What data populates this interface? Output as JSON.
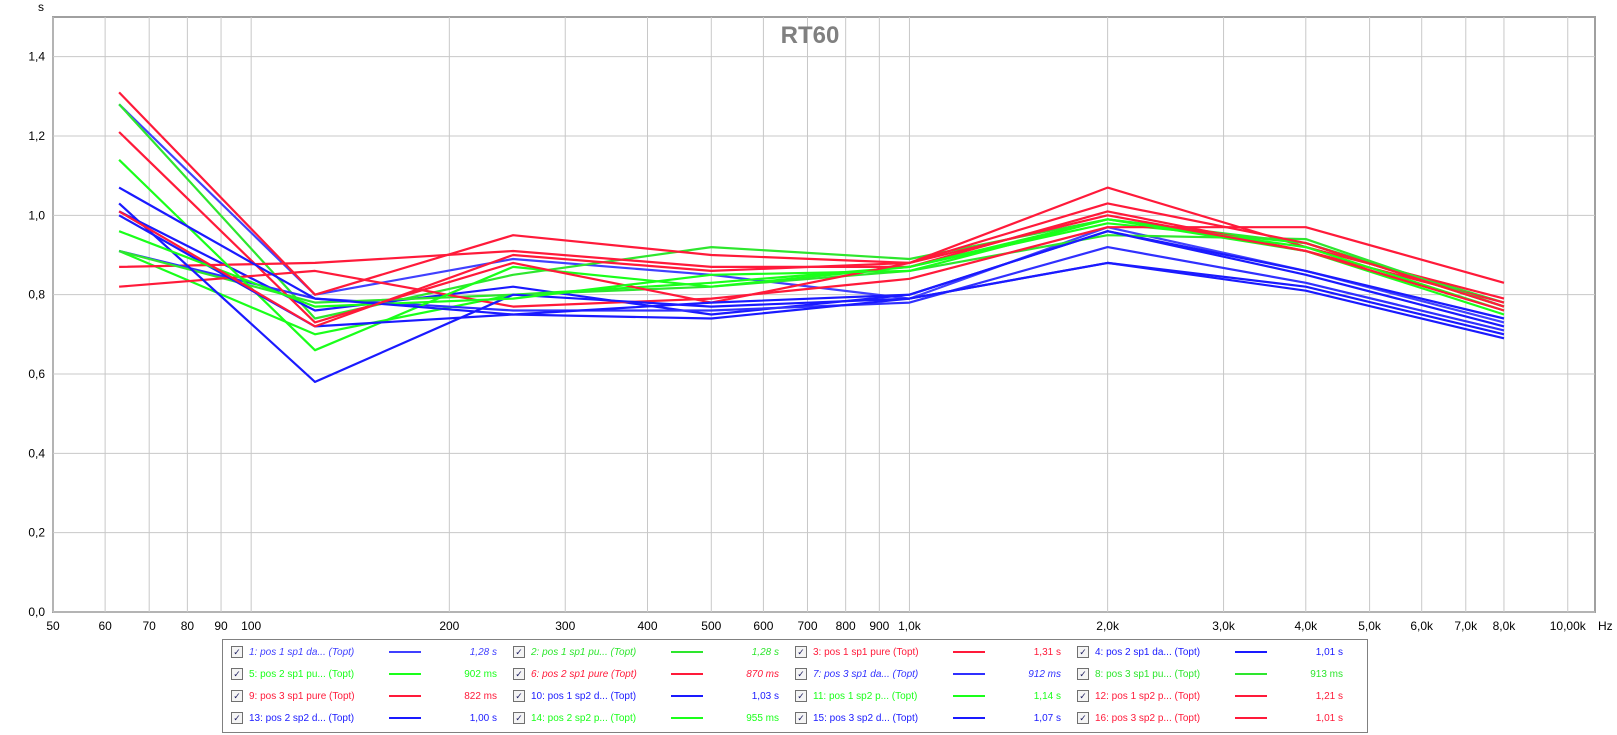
{
  "chart_data": {
    "type": "line",
    "title": "RT60",
    "ylabel": "s",
    "xunit": "Hz",
    "xscale": "log",
    "xlim": [
      50,
      11000
    ],
    "ylim": [
      0,
      1.5
    ],
    "grid": true,
    "x_ticks": [
      {
        "v": 50,
        "label": "50"
      },
      {
        "v": 60,
        "label": "60"
      },
      {
        "v": 70,
        "label": "70"
      },
      {
        "v": 80,
        "label": "80"
      },
      {
        "v": 90,
        "label": "90"
      },
      {
        "v": 100,
        "label": "100"
      },
      {
        "v": 200,
        "label": "200"
      },
      {
        "v": 300,
        "label": "300"
      },
      {
        "v": 400,
        "label": "400"
      },
      {
        "v": 500,
        "label": "500"
      },
      {
        "v": 600,
        "label": "600"
      },
      {
        "v": 700,
        "label": "700"
      },
      {
        "v": 800,
        "label": "800"
      },
      {
        "v": 900,
        "label": "900"
      },
      {
        "v": 1000,
        "label": "1,0k"
      },
      {
        "v": 2000,
        "label": "2,0k"
      },
      {
        "v": 3000,
        "label": "3,0k"
      },
      {
        "v": 4000,
        "label": "4,0k"
      },
      {
        "v": 5000,
        "label": "5,0k"
      },
      {
        "v": 6000,
        "label": "6,0k"
      },
      {
        "v": 7000,
        "label": "7,0k"
      },
      {
        "v": 8000,
        "label": "8,0k"
      },
      {
        "v": 10000,
        "label": "10,00k"
      }
    ],
    "y_ticks": [
      {
        "v": 0,
        "label": "0,0"
      },
      {
        "v": 0.2,
        "label": "0,2"
      },
      {
        "v": 0.4,
        "label": "0,4"
      },
      {
        "v": 0.6,
        "label": "0,6"
      },
      {
        "v": 0.8,
        "label": "0,8"
      },
      {
        "v": 1.0,
        "label": "1,0"
      },
      {
        "v": 1.2,
        "label": "1,2"
      },
      {
        "v": 1.4,
        "label": "1,4"
      }
    ],
    "x": [
      63,
      125,
      250,
      500,
      1000,
      2000,
      4000,
      8000
    ],
    "series": [
      {
        "name": "1: pos 1 sp1 da... (Topt)",
        "color": "#4040ff",
        "italic": true,
        "value": "1,28 s",
        "values": [
          1.28,
          0.8,
          0.89,
          0.85,
          0.79,
          0.97,
          0.86,
          0.73
        ]
      },
      {
        "name": "2: pos 1 sp1 pu... (Topt)",
        "color": "#2ee62e",
        "italic": true,
        "value": "1,28 s",
        "values": [
          1.28,
          0.74,
          0.85,
          0.92,
          0.89,
          0.99,
          0.93,
          0.78
        ]
      },
      {
        "name": "3: pos 1 sp1 pure (Topt)",
        "color": "#ff1a3a",
        "italic": false,
        "value": "1,31 s",
        "values": [
          1.31,
          0.8,
          0.95,
          0.9,
          0.88,
          1.07,
          0.92,
          0.79
        ]
      },
      {
        "name": "4: pos 2 sp1 da... (Topt)",
        "color": "#1a1aff",
        "italic": false,
        "value": "1,01 s",
        "values": [
          1.01,
          0.76,
          0.82,
          0.75,
          0.8,
          0.96,
          0.86,
          0.74
        ]
      },
      {
        "name": "5: pos 2 sp1 pu... (Topt)",
        "color": "#1aff1a",
        "italic": false,
        "value": "902 ms",
        "values": [
          0.91,
          0.7,
          0.8,
          0.83,
          0.87,
          0.98,
          0.93,
          0.77
        ]
      },
      {
        "name": "6: pos 2 sp1 pure (Topt)",
        "color": "#ff1a3a",
        "italic": true,
        "value": "870 ms",
        "values": [
          0.87,
          0.88,
          0.91,
          0.87,
          0.87,
          1.01,
          0.91,
          0.78
        ]
      },
      {
        "name": "7: pos 3 sp1 da... (Topt)",
        "color": "#3030ff",
        "italic": true,
        "value": "912 ms",
        "values": [
          0.91,
          0.79,
          0.76,
          0.76,
          0.78,
          0.92,
          0.83,
          0.71
        ]
      },
      {
        "name": "8: pos 3 sp1 pu... (Topt)",
        "color": "#2ee62e",
        "italic": false,
        "value": "913 ms",
        "values": [
          0.91,
          0.78,
          0.8,
          0.82,
          0.86,
          0.95,
          0.94,
          0.77
        ]
      },
      {
        "name": "9: pos 3 sp1 pure (Topt)",
        "color": "#ff1a3a",
        "italic": false,
        "value": "822 ms",
        "values": [
          0.82,
          0.86,
          0.77,
          0.79,
          0.84,
          0.97,
          0.97,
          0.83
        ]
      },
      {
        "name": "10: pos 1 sp2 d... (Topt)",
        "color": "#1a1aff",
        "italic": false,
        "value": "1,03 s",
        "values": [
          1.03,
          0.58,
          0.8,
          0.77,
          0.79,
          0.88,
          0.81,
          0.69
        ]
      },
      {
        "name": "11: pos 1 sp2 p... (Topt)",
        "color": "#1aff1a",
        "italic": false,
        "value": "1,14 s",
        "values": [
          1.14,
          0.66,
          0.87,
          0.82,
          0.87,
          0.99,
          0.92,
          0.76
        ]
      },
      {
        "name": "12: pos 1 sp2 p... (Topt)",
        "color": "#ff1a3a",
        "italic": false,
        "value": "1,21 s",
        "values": [
          1.21,
          0.73,
          0.88,
          0.78,
          0.88,
          1.03,
          0.93,
          0.77
        ]
      },
      {
        "name": "13: pos 2 sp2 d... (Topt)",
        "color": "#1a1aff",
        "italic": false,
        "value": "1,00 s",
        "values": [
          1.0,
          0.72,
          0.75,
          0.78,
          0.8,
          0.96,
          0.85,
          0.72
        ]
      },
      {
        "name": "14: pos 2 sp2 p... (Topt)",
        "color": "#1aff1a",
        "italic": false,
        "value": "955 ms",
        "values": [
          0.96,
          0.77,
          0.79,
          0.85,
          0.86,
          0.99,
          0.91,
          0.75
        ]
      },
      {
        "name": "15: pos 3 sp2 d... (Topt)",
        "color": "#1a1aff",
        "italic": false,
        "value": "1,07 s",
        "values": [
          1.07,
          0.79,
          0.75,
          0.74,
          0.79,
          0.88,
          0.82,
          0.7
        ]
      },
      {
        "name": "16: pos 3 sp2 p... (Topt)",
        "color": "#ff1a3a",
        "italic": false,
        "value": "1,01 s",
        "values": [
          1.01,
          0.72,
          0.9,
          0.86,
          0.88,
          1.0,
          0.91,
          0.76
        ]
      }
    ]
  }
}
